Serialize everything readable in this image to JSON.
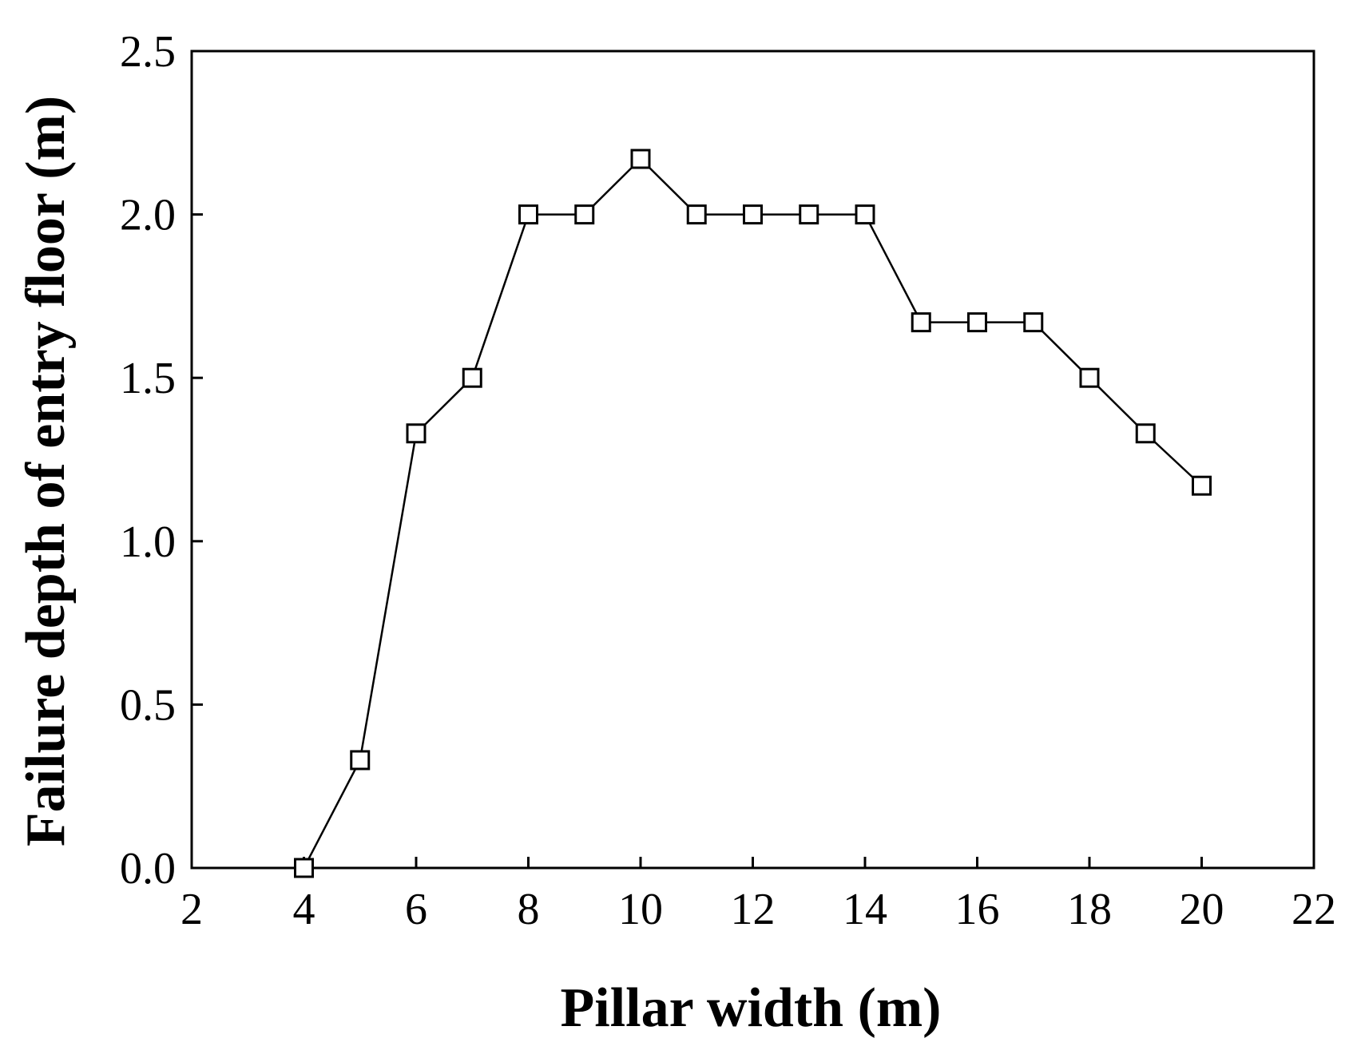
{
  "chart_data": {
    "type": "line",
    "title": "",
    "xlabel": "Pillar width (m)",
    "ylabel": "Failure depth of entry floor (m)",
    "xlim": [
      2,
      22
    ],
    "ylim": [
      0.0,
      2.5
    ],
    "x_ticks": [
      "2",
      "4",
      "6",
      "8",
      "10",
      "12",
      "14",
      "16",
      "18",
      "20",
      "22"
    ],
    "y_ticks": [
      "0.0",
      "0.5",
      "1.0",
      "1.5",
      "2.0",
      "2.5"
    ],
    "grid": false,
    "legend": "none",
    "marker": "open-square",
    "line_color": "#000000",
    "series": [
      {
        "x": [
          4,
          5,
          6,
          7,
          8,
          9,
          10,
          11,
          12,
          13,
          14,
          15,
          16,
          17,
          18,
          19,
          20
        ],
        "y": [
          0.0,
          0.33,
          1.33,
          1.5,
          2.0,
          2.0,
          2.17,
          2.0,
          2.0,
          2.0,
          2.0,
          1.67,
          1.67,
          1.67,
          1.5,
          1.33,
          1.17
        ]
      }
    ]
  }
}
